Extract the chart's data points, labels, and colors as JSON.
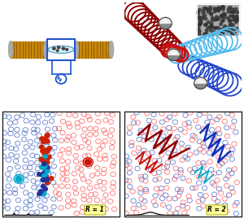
{
  "fig_width": 3.0,
  "fig_height": 2.69,
  "dpi": 100,
  "bg_color": "#ffffff",
  "tl_bg": "#f0f0f0",
  "tr_bg": "#e8e8e8",
  "R1_label": "R = 1",
  "R2_label": "R = 2",
  "label_face": "#ffff99",
  "label_edge": "#aaaa00",
  "coil_color": "#c8860a",
  "coil_dark": "#7a5200",
  "cap_color": "#aaaaaa",
  "cell_fill": "#c8ecf0",
  "cell_edge": "#4499cc",
  "outer_edge": "#2255cc",
  "ac_color": "#2255cc",
  "particle_col": "#444444",
  "dark_red_coil": "#8b0000",
  "red_coil": "#cc1111",
  "cyan_coil": "#55bbee",
  "blue_coil": "#2244cc",
  "janus_dark": "#444444",
  "janus_light": "#eeeeee",
  "sim_red": "#ff6666",
  "sim_blue": "#5577cc",
  "cluster_red": "#cc2200",
  "cluster_dark_blue": "#223399",
  "cluster_cyan": "#00aacc",
  "iso_red": "#cc1100",
  "iso_cyan": "#00aacc",
  "path_darkred": "#8b0000",
  "path_red": "#cc1100",
  "path_blue": "#1133bb",
  "path_cyan": "#00aacc"
}
